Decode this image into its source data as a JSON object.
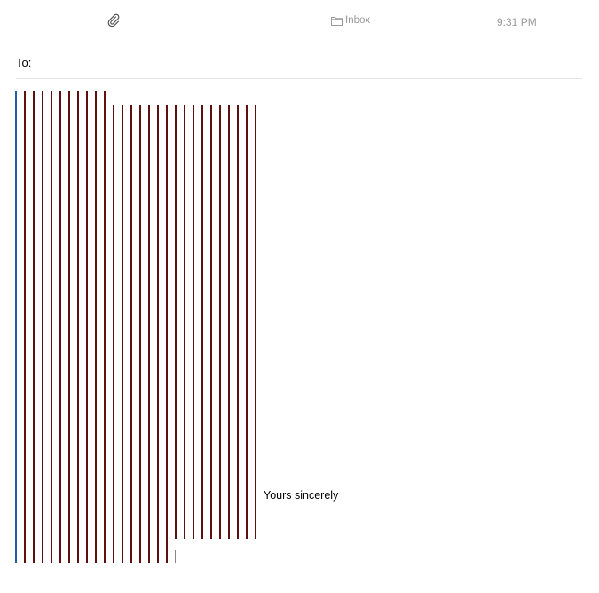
{
  "header": {
    "mailbox_label": "Inbox",
    "mailbox_separator": "·",
    "time": "9:31 PM"
  },
  "compose": {
    "to_label": "To:",
    "to_value": "",
    "signature": "Yours sincerely"
  },
  "colors": {
    "outer_quote_bar": "#1e5fa6",
    "inner_quote_bar": "#5e0f0f",
    "muted_text": "#9a9a9a"
  },
  "icons": {
    "attachment": "paperclip-icon",
    "mailbox": "folder-icon"
  },
  "quote_levels": {
    "total": 28,
    "outer_blue": 1
  }
}
